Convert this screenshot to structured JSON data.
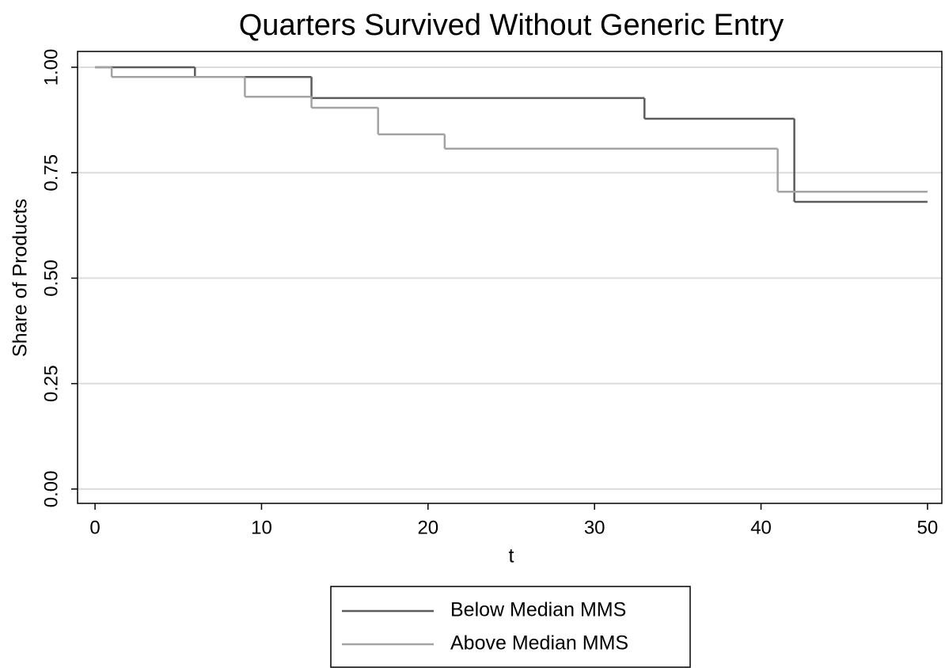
{
  "chart_data": {
    "type": "line",
    "step": "post",
    "title": "Quarters Survived Without Generic Entry",
    "x_label": "t",
    "y_label": "Share of Products",
    "xlim": [
      -1.05,
      50.86
    ],
    "ylim": [
      -0.034,
      1.0375
    ],
    "xticks": [
      0,
      10,
      20,
      30,
      40,
      50
    ],
    "yticks": [
      {
        "value": 0,
        "label": "0.00"
      },
      {
        "value": 0.25,
        "label": "0.25"
      },
      {
        "value": 0.5,
        "label": "0.50"
      },
      {
        "value": 0.75,
        "label": "0.75"
      },
      {
        "value": 1,
        "label": "1.00"
      }
    ],
    "grid": true,
    "legend": "bottom",
    "series": [
      {
        "name": "Below Median MMS",
        "color": "#5c5c5c",
        "x": [
          0,
          6,
          13,
          33,
          42,
          50
        ],
        "values": [
          1,
          0.977,
          0.927,
          0.878,
          0.681,
          0.681
        ]
      },
      {
        "name": "Above Median MMS",
        "color": "#a3a3a3",
        "x": [
          0,
          1,
          9,
          13,
          17,
          21,
          41,
          50
        ],
        "values": [
          1,
          0.977,
          0.93,
          0.904,
          0.841,
          0.807,
          0.705,
          0.705
        ]
      }
    ]
  }
}
